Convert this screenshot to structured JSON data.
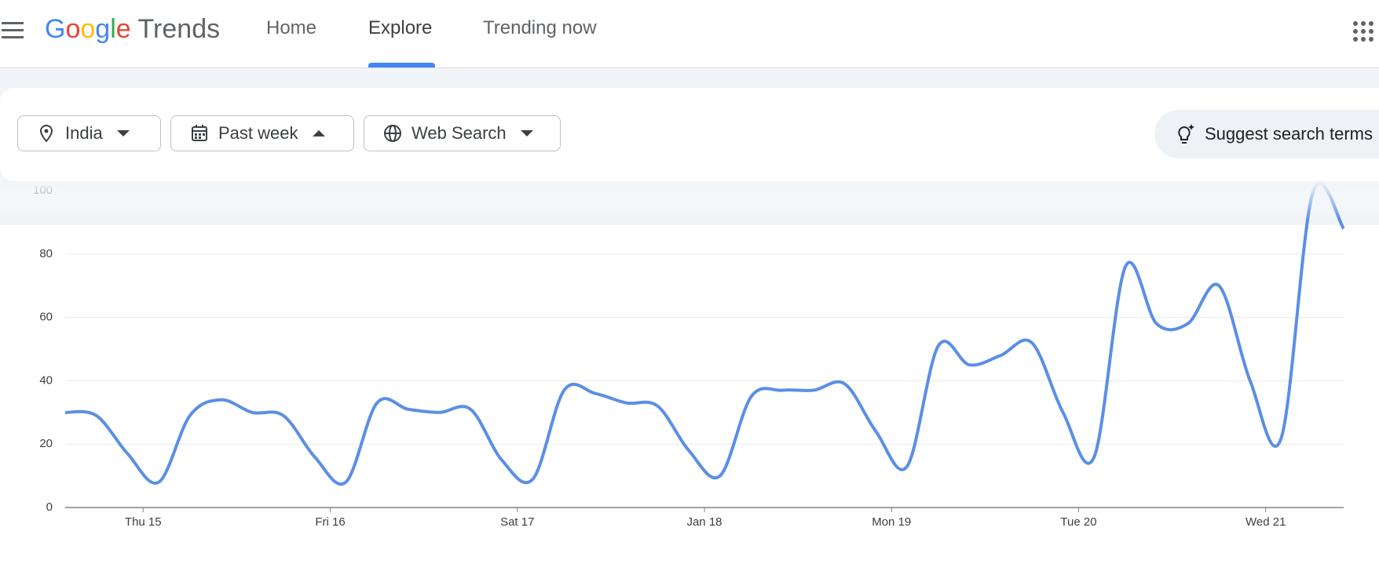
{
  "header": {
    "logo": "Google",
    "product": "Trends",
    "nav": [
      "Home",
      "Explore",
      "Trending now"
    ],
    "selected": "Explore"
  },
  "filters": [
    "India",
    "Past week",
    "Web Search"
  ],
  "suggest": "Suggest search terms",
  "chart_data": {
    "type": "line",
    "color": "#5b8ee6",
    "grid": true,
    "x": [
      -10,
      -6,
      -2,
      2,
      6,
      10,
      14,
      18,
      22,
      26,
      30,
      34,
      38,
      42,
      46,
      50,
      54,
      58,
      62,
      66,
      70,
      74,
      78,
      82,
      86,
      90,
      94,
      98,
      102,
      106,
      110,
      114,
      118,
      122,
      126,
      130,
      134,
      138,
      142,
      146,
      150,
      154
    ],
    "values": [
      30,
      29,
      17,
      8,
      29,
      34,
      30,
      29,
      16,
      8,
      33,
      31,
      30,
      31,
      15,
      9,
      37,
      36,
      33,
      32,
      18,
      10,
      35,
      37,
      37,
      39,
      24,
      13,
      51,
      45,
      48,
      52,
      30,
      16,
      76,
      58,
      58,
      70,
      40,
      22,
      99,
      88
    ],
    "xlim": [
      -10,
      154
    ],
    "xticks": [
      {
        "value": 0,
        "label": "Thu 15"
      },
      {
        "value": 24,
        "label": "Fri 16"
      },
      {
        "value": 48,
        "label": "Sat 17"
      },
      {
        "value": 72,
        "label": "Jan 18"
      },
      {
        "value": 96,
        "label": "Mon 19"
      },
      {
        "value": 120,
        "label": "Tue 20"
      },
      {
        "value": 144,
        "label": "Wed 21"
      }
    ],
    "ylim": [
      0,
      100
    ],
    "yticks": [
      0,
      20,
      40,
      60,
      80,
      100
    ]
  }
}
